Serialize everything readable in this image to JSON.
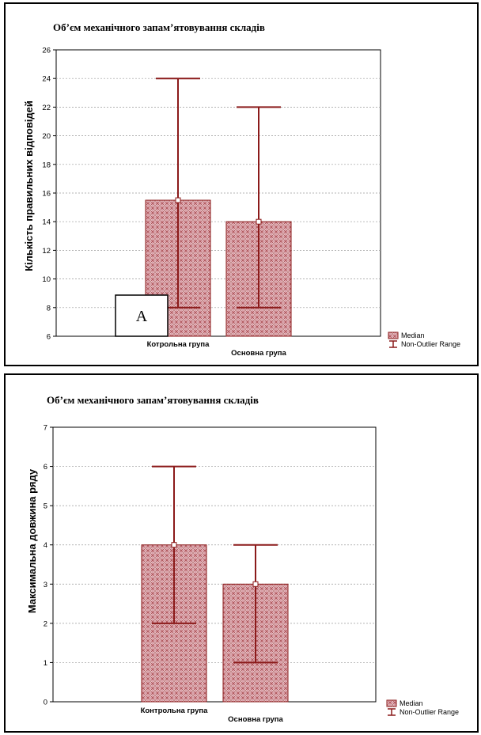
{
  "chart_data": [
    {
      "type": "bar",
      "title": "Об’єм механічного запам’ятовування складів",
      "ylabel": "Кількість правильних відповідей",
      "xlabel": "",
      "categories": [
        "Котрольна група",
        "Основна група"
      ],
      "values": [
        15.5,
        14
      ],
      "range_min": [
        8,
        8
      ],
      "range_max": [
        24,
        22
      ],
      "ylim": [
        6,
        26
      ],
      "yticks": [
        6,
        8,
        10,
        12,
        14,
        16,
        18,
        20,
        22,
        24,
        26
      ],
      "grid": true,
      "legend": [
        "Median",
        "Non-Outlier Range"
      ],
      "legend_position": "bottom-right",
      "annotation": "A",
      "colors": {
        "bar": "#d9a0a8",
        "edge": "#8b1a1a",
        "whisker": "#8b1a1a"
      }
    },
    {
      "type": "bar",
      "title": "Об’єм механічного запам’ятовування складів",
      "ylabel": "Максимальна довжина ряду",
      "xlabel": "",
      "categories": [
        "Контрольна група",
        "Основна група"
      ],
      "values": [
        4,
        3
      ],
      "range_min": [
        2,
        1
      ],
      "range_max": [
        6,
        4
      ],
      "ylim": [
        0,
        7
      ],
      "yticks": [
        0,
        1,
        2,
        3,
        4,
        5,
        6,
        7
      ],
      "grid": true,
      "legend": [
        "Median",
        "Non-Outlier Range"
      ],
      "legend_position": "bottom-right",
      "colors": {
        "bar": "#d9a0a8",
        "edge": "#8b1a1a",
        "whisker": "#8b1a1a"
      }
    }
  ]
}
